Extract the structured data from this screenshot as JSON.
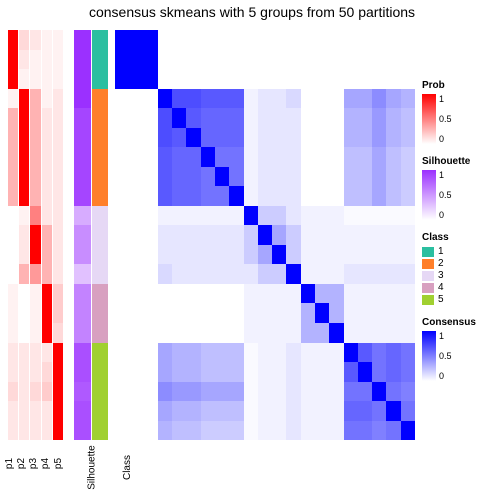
{
  "title": "consensus skmeans with 5 groups from 50 partitions",
  "layout": {
    "n_rows": 21,
    "annot_cols": [
      "p1",
      "p2",
      "p3",
      "p4",
      "p5",
      "Silhouette",
      "Class"
    ]
  },
  "colors": {
    "prob_scale": [
      "#ffffff",
      "#ff0000"
    ],
    "silhouette_scale": [
      "#ffffff",
      "#9b30ff"
    ],
    "consensus_scale": [
      "#ffffff",
      "#0000ff"
    ],
    "class": {
      "1": "#2bbfa0",
      "2": "#ff7f2a",
      "3": "#e6d8f5",
      "4": "#d8a0c0",
      "5": "#a0d030"
    }
  },
  "annotations": {
    "p1": [
      1,
      1,
      1,
      0.05,
      0.3,
      0.3,
      0.3,
      0.3,
      0.3,
      0,
      0,
      0,
      0,
      0.05,
      0.05,
      0.05,
      0.1,
      0.1,
      0.15,
      0.1,
      0.1
    ],
    "p2": [
      0.15,
      0.1,
      0.05,
      1,
      1,
      1,
      1,
      1,
      1,
      0.05,
      0.1,
      0.1,
      0.3,
      0,
      0,
      0,
      0.1,
      0.1,
      0.1,
      0.1,
      0.1
    ],
    "p3": [
      0.1,
      0.05,
      0.05,
      0.3,
      0.3,
      0.3,
      0.3,
      0.3,
      0.3,
      0.5,
      1,
      1,
      0.4,
      0.05,
      0.05,
      0.05,
      0.1,
      0.1,
      0.15,
      0.1,
      0.1
    ],
    "p4": [
      0.05,
      0.05,
      0.05,
      0.05,
      0.1,
      0.1,
      0.1,
      0.1,
      0.1,
      0.1,
      0.3,
      0.3,
      0.3,
      1,
      1,
      1,
      0.1,
      0.15,
      0.2,
      0.1,
      0.1
    ],
    "p5": [
      0.05,
      0.05,
      0.05,
      0.1,
      0.1,
      0.1,
      0.1,
      0.1,
      0.1,
      0.1,
      0.1,
      0.1,
      0.1,
      0.2,
      0.2,
      0.15,
      1,
      1,
      1,
      1,
      1
    ],
    "Silhouette": [
      1,
      1,
      1,
      1,
      0.9,
      0.9,
      0.9,
      0.9,
      0.9,
      0.4,
      0.55,
      0.55,
      0.3,
      0.6,
      0.6,
      0.6,
      0.85,
      0.85,
      0.8,
      0.85,
      0.85
    ],
    "Class_idx": [
      1,
      1,
      1,
      2,
      2,
      2,
      2,
      2,
      2,
      3,
      3,
      3,
      3,
      4,
      4,
      4,
      5,
      5,
      5,
      5,
      5
    ]
  },
  "heatmap": [
    [
      1,
      1,
      1,
      0,
      0,
      0,
      0,
      0,
      0,
      0,
      0,
      0,
      0,
      0,
      0,
      0,
      0,
      0,
      0,
      0,
      0
    ],
    [
      1,
      1,
      1,
      0,
      0,
      0,
      0,
      0,
      0,
      0,
      0,
      0,
      0,
      0,
      0,
      0,
      0,
      0,
      0,
      0,
      0
    ],
    [
      1,
      1,
      1,
      0,
      0,
      0,
      0,
      0,
      0,
      0,
      0,
      0,
      0,
      0,
      0,
      0,
      0,
      0,
      0,
      0,
      0
    ],
    [
      0,
      0,
      0,
      1,
      0.7,
      0.7,
      0.65,
      0.65,
      0.65,
      0.05,
      0.1,
      0.1,
      0.15,
      0,
      0,
      0,
      0.35,
      0.35,
      0.45,
      0.35,
      0.3
    ],
    [
      0,
      0,
      0,
      0.7,
      1,
      0.65,
      0.6,
      0.6,
      0.6,
      0.05,
      0.1,
      0.1,
      0.1,
      0,
      0,
      0,
      0.3,
      0.3,
      0.4,
      0.3,
      0.25
    ],
    [
      0,
      0,
      0,
      0.7,
      0.65,
      1,
      0.6,
      0.6,
      0.6,
      0.05,
      0.1,
      0.1,
      0.1,
      0,
      0,
      0,
      0.3,
      0.3,
      0.4,
      0.3,
      0.25
    ],
    [
      0,
      0,
      0,
      0.65,
      0.6,
      0.6,
      1,
      0.55,
      0.55,
      0.05,
      0.1,
      0.1,
      0.1,
      0,
      0,
      0,
      0.25,
      0.25,
      0.35,
      0.25,
      0.2
    ],
    [
      0,
      0,
      0,
      0.65,
      0.6,
      0.6,
      0.55,
      1,
      0.55,
      0.05,
      0.1,
      0.1,
      0.1,
      0,
      0,
      0,
      0.25,
      0.25,
      0.35,
      0.25,
      0.2
    ],
    [
      0,
      0,
      0,
      0.65,
      0.6,
      0.6,
      0.55,
      0.55,
      1,
      0.05,
      0.1,
      0.1,
      0.1,
      0,
      0,
      0,
      0.25,
      0.25,
      0.35,
      0.25,
      0.2
    ],
    [
      0,
      0,
      0,
      0.05,
      0.05,
      0.05,
      0.05,
      0.05,
      0.05,
      1,
      0.2,
      0.2,
      0.1,
      0.05,
      0.05,
      0.05,
      0.02,
      0.02,
      0.02,
      0.02,
      0.02
    ],
    [
      0,
      0,
      0,
      0.1,
      0.1,
      0.1,
      0.1,
      0.1,
      0.1,
      0.2,
      1,
      0.35,
      0.2,
      0.05,
      0.05,
      0.05,
      0.05,
      0.05,
      0.05,
      0.05,
      0.05
    ],
    [
      0,
      0,
      0,
      0.1,
      0.1,
      0.1,
      0.1,
      0.1,
      0.1,
      0.2,
      0.35,
      1,
      0.2,
      0.05,
      0.05,
      0.05,
      0.05,
      0.05,
      0.05,
      0.05,
      0.05
    ],
    [
      0,
      0,
      0,
      0.15,
      0.1,
      0.1,
      0.1,
      0.1,
      0.1,
      0.1,
      0.2,
      0.2,
      1,
      0.05,
      0.05,
      0.05,
      0.1,
      0.1,
      0.1,
      0.1,
      0.1
    ],
    [
      0,
      0,
      0,
      0,
      0,
      0,
      0,
      0,
      0,
      0.05,
      0.05,
      0.05,
      0.05,
      1,
      0.3,
      0.3,
      0.05,
      0.05,
      0.05,
      0.05,
      0.05
    ],
    [
      0,
      0,
      0,
      0,
      0,
      0,
      0,
      0,
      0,
      0.05,
      0.05,
      0.05,
      0.05,
      0.3,
      1,
      0.3,
      0.05,
      0.05,
      0.05,
      0.05,
      0.05
    ],
    [
      0,
      0,
      0,
      0,
      0,
      0,
      0,
      0,
      0,
      0.05,
      0.05,
      0.05,
      0.05,
      0.3,
      0.3,
      1,
      0.05,
      0.05,
      0.05,
      0.05,
      0.05
    ],
    [
      0,
      0,
      0,
      0.35,
      0.3,
      0.3,
      0.25,
      0.25,
      0.25,
      0.02,
      0.05,
      0.05,
      0.1,
      0.05,
      0.05,
      0.05,
      1,
      0.65,
      0.55,
      0.6,
      0.55
    ],
    [
      0,
      0,
      0,
      0.35,
      0.3,
      0.3,
      0.25,
      0.25,
      0.25,
      0.02,
      0.05,
      0.05,
      0.1,
      0.05,
      0.05,
      0.05,
      0.65,
      1,
      0.55,
      0.6,
      0.55
    ],
    [
      0,
      0,
      0,
      0.45,
      0.4,
      0.4,
      0.35,
      0.35,
      0.35,
      0.02,
      0.05,
      0.05,
      0.1,
      0.05,
      0.05,
      0.05,
      0.55,
      0.55,
      1,
      0.55,
      0.5
    ],
    [
      0,
      0,
      0,
      0.35,
      0.3,
      0.3,
      0.25,
      0.25,
      0.25,
      0.02,
      0.05,
      0.05,
      0.1,
      0.05,
      0.05,
      0.05,
      0.6,
      0.6,
      0.55,
      1,
      0.55
    ],
    [
      0,
      0,
      0,
      0.3,
      0.25,
      0.25,
      0.2,
      0.2,
      0.2,
      0.02,
      0.05,
      0.05,
      0.1,
      0.05,
      0.05,
      0.05,
      0.55,
      0.55,
      0.5,
      0.55,
      1
    ]
  ],
  "legends": {
    "Prob": {
      "ticks": [
        "1",
        "0.5",
        "0"
      ]
    },
    "Silhouette": {
      "ticks": [
        "1",
        "0.5",
        "0"
      ]
    },
    "Class": {
      "items": [
        "1",
        "2",
        "3",
        "4",
        "5"
      ]
    },
    "Consensus": {
      "ticks": [
        "1",
        "0.5",
        "0"
      ]
    }
  }
}
